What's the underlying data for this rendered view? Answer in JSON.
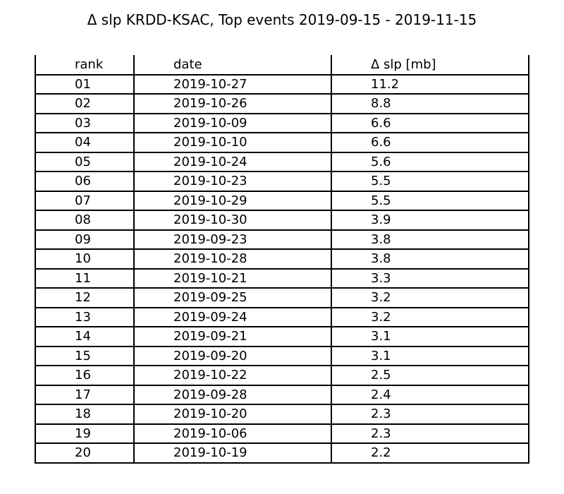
{
  "chart_data": {
    "type": "table",
    "title": "Δ slp KRDD-KSAC, Top events 2019-09-15 - 2019-11-15",
    "columns": [
      "rank",
      "date",
      "Δ slp [mb]"
    ],
    "rows": [
      [
        "01",
        "2019-10-27",
        "11.2"
      ],
      [
        "02",
        "2019-10-26",
        "8.8"
      ],
      [
        "03",
        "2019-10-09",
        "6.6"
      ],
      [
        "04",
        "2019-10-10",
        "6.6"
      ],
      [
        "05",
        "2019-10-24",
        "5.6"
      ],
      [
        "06",
        "2019-10-23",
        "5.5"
      ],
      [
        "07",
        "2019-10-29",
        "5.5"
      ],
      [
        "08",
        "2019-10-30",
        "3.9"
      ],
      [
        "09",
        "2019-09-23",
        "3.8"
      ],
      [
        "10",
        "2019-10-28",
        "3.8"
      ],
      [
        "11",
        "2019-10-21",
        "3.3"
      ],
      [
        "12",
        "2019-09-25",
        "3.2"
      ],
      [
        "13",
        "2019-09-24",
        "3.2"
      ],
      [
        "14",
        "2019-09-21",
        "3.1"
      ],
      [
        "15",
        "2019-09-20",
        "3.1"
      ],
      [
        "16",
        "2019-10-22",
        "2.5"
      ],
      [
        "17",
        "2019-09-28",
        "2.4"
      ],
      [
        "18",
        "2019-10-20",
        "2.3"
      ],
      [
        "19",
        "2019-10-06",
        "2.3"
      ],
      [
        "20",
        "2019-10-19",
        "2.2"
      ]
    ]
  }
}
